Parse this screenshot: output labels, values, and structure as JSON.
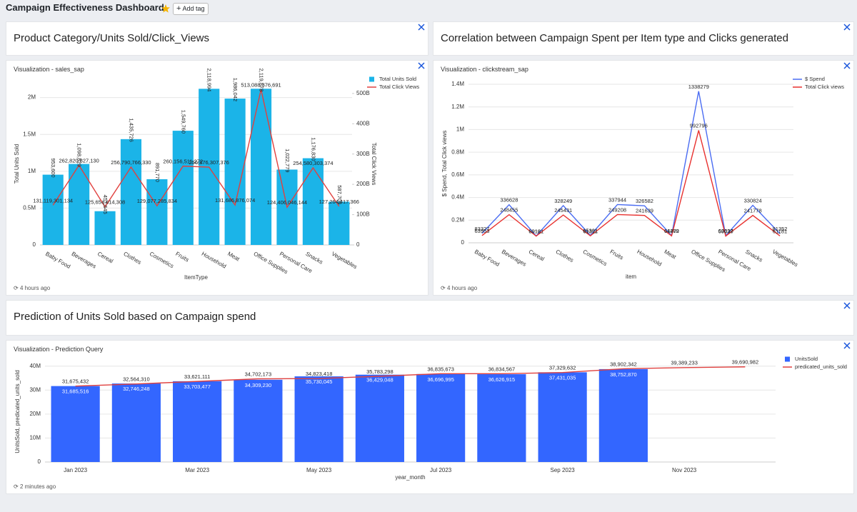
{
  "header": {
    "title": "Campaign Effectiveness Dashboard",
    "add_tag": "Add tag"
  },
  "panels": [
    {
      "title": "Product Category/Units Sold/Click_Views",
      "viz_title": "Visualization - sales_sap",
      "updated": "4 hours ago",
      "chart": {
        "type": "combo",
        "categories": [
          "Baby Food",
          "Beverages",
          "Cereal",
          "Clothes",
          "Cosmetics",
          "Fruits",
          "Household",
          "Meat",
          "Office Supplies",
          "Personal Care",
          "Snacks",
          "Vegetables"
        ],
        "x_title": "ItemType",
        "y_title": "Total Units Sold",
        "y2_title": "Total Click Views",
        "ylim": [
          0,
          2200000
        ],
        "yticks": [
          0,
          {
            "value": 500000,
            "label": "0.5M"
          },
          {
            "value": 1000000,
            "label": "1M"
          },
          {
            "value": 1500000,
            "label": "1.5M"
          },
          {
            "value": 2000000,
            "label": "2M"
          }
        ],
        "y2lim": [
          0,
          535000000000
        ],
        "y2ticks": [
          0,
          {
            "value": 100000000000,
            "label": "100B"
          },
          {
            "value": 200000000000,
            "label": "200B"
          },
          {
            "value": 300000000000,
            "label": "300B"
          },
          {
            "value": 400000000000,
            "label": "400B"
          },
          {
            "value": 500000000000,
            "label": "500B"
          }
        ],
        "grid": true,
        "legend": "top-right",
        "series": [
          {
            "name": "Total Units Sold",
            "type": "bar",
            "color": "#1bb4e8",
            "values": [
              953600,
              1098829,
              457645,
              1435726,
              891770,
              1549760,
              2118994,
              1986042,
              2119878,
              1022779,
              1176830,
              587704
            ],
            "value_labels": [
              "953,600",
              "1,098,829",
              "457,645",
              "1,435,726",
              "891,770",
              "1,549,760",
              "2,118,994",
              "1,986,042",
              "2,119,878",
              "1,022,779",
              "1,176,830",
              "587,704"
            ]
          },
          {
            "name": "Total Click Views",
            "type": "line",
            "axis": "y2",
            "color": "#e0413f",
            "values": [
              131119301134,
              262820827130,
              125654614308,
              256790766330,
              129077285834,
              260156511272,
              256876307376,
              131686876074,
              513088376691,
              124406046144,
              254580303374,
              127264417366
            ],
            "value_labels": [
              "131,119,301,134",
              "262,820,827,130",
              "125,654,614,308",
              "256,790,766,330",
              "129,077,285,834",
              "260,156,511,272",
              "256,876,307,376",
              "131,686,876,074",
              "513,088,376,691",
              "124,406,046,144",
              "254,580,303,374",
              "127,264,417,366"
            ]
          }
        ]
      }
    },
    {
      "title": "Correlation between Campaign Spent per Item type and Clicks generated",
      "viz_title": "Visualization - clickstream_sap",
      "updated": "4 hours ago",
      "chart": {
        "type": "line",
        "categories": [
          "Baby Food",
          "Beverages",
          "Cereal",
          "Clothes",
          "Cosmetics",
          "Fruits",
          "Household",
          "Meat",
          "Office Supplies",
          "Personal Care",
          "Snacks",
          "Vegetables"
        ],
        "x_title": "item",
        "y_title": "$ Spend, Total Click views",
        "ylim": [
          0,
          1400000
        ],
        "yticks": [
          0,
          {
            "value": 200000,
            "label": "0.2M"
          },
          {
            "value": 400000,
            "label": "0.4M"
          },
          {
            "value": 600000,
            "label": "0.6M"
          },
          {
            "value": 800000,
            "label": "0.8M"
          },
          {
            "value": 1000000,
            "label": "1M"
          },
          {
            "value": 1200000,
            "label": "1.2M"
          },
          {
            "value": 1400000,
            "label": "1.4M"
          }
        ],
        "grid": true,
        "legend": "top-right",
        "series": [
          {
            "name": "$ Spend",
            "color": "#4a6cf2",
            "values": [
              83327,
              336628,
              60121,
              328249,
              65301,
              337944,
              326582,
              64279,
              1338279,
              63637,
              330824,
              81352
            ]
          },
          {
            "name": "Total Click views",
            "color": "#e8312f",
            "values": [
              63953,
              248455,
              59161,
              245431,
              61311,
              249208,
              241639,
              61402,
              992796,
              59030,
              241778,
              61181
            ]
          }
        ]
      }
    },
    {
      "title": "Prediction of Units Sold based on Campaign spend",
      "viz_title": "Visualization - Prediction Query",
      "updated": "2 minutes ago",
      "chart": {
        "type": "combo",
        "categories": [
          "Jan 2023",
          null,
          "Mar 2023",
          null,
          "May 2023",
          null,
          "Jul 2023",
          null,
          "Sep 2023",
          null,
          "Nov 2023",
          null
        ],
        "x_title": "year_month",
        "y_title": "UnitsSold, predicated_units_sold",
        "ylim": [
          0,
          42000000
        ],
        "yticks": [
          0,
          {
            "value": 10000000,
            "label": "10M"
          },
          {
            "value": 20000000,
            "label": "20M"
          },
          {
            "value": 30000000,
            "label": "30M"
          },
          {
            "value": 40000000,
            "label": "40M"
          }
        ],
        "grid": true,
        "legend": "top-right",
        "series": [
          {
            "name": "UnitsSold",
            "type": "bar",
            "color": "#3366ff",
            "values": [
              31685516,
              32746248,
              33703477,
              34309230,
              35730045,
              36429048,
              36696995,
              36626915,
              37431035,
              38752870,
              null,
              null
            ],
            "value_labels": [
              "31,685,516",
              "32,746,248",
              "33,703,477",
              "34,309,230",
              "35,730,045",
              "36,429,048",
              "36,696,995",
              "36,626,915",
              "37,431,035",
              "38,752,870",
              null,
              null
            ]
          },
          {
            "name": "predicated_units_sold",
            "type": "line",
            "color": "#e0413f",
            "values": [
              31675432,
              32564310,
              33621111,
              34702173,
              34823418,
              35783298,
              36835673,
              36834567,
              37329632,
              38902342,
              39389233,
              39690982
            ],
            "value_labels": [
              "31,675,432",
              "32,564,310",
              "33,621,111",
              "34,702,173",
              "34,823,418",
              "35,783,298",
              "36,835,673",
              "36,834,567",
              "37,329,632",
              "38,902,342",
              "39,389,233",
              "39,690,982"
            ]
          }
        ]
      }
    }
  ]
}
